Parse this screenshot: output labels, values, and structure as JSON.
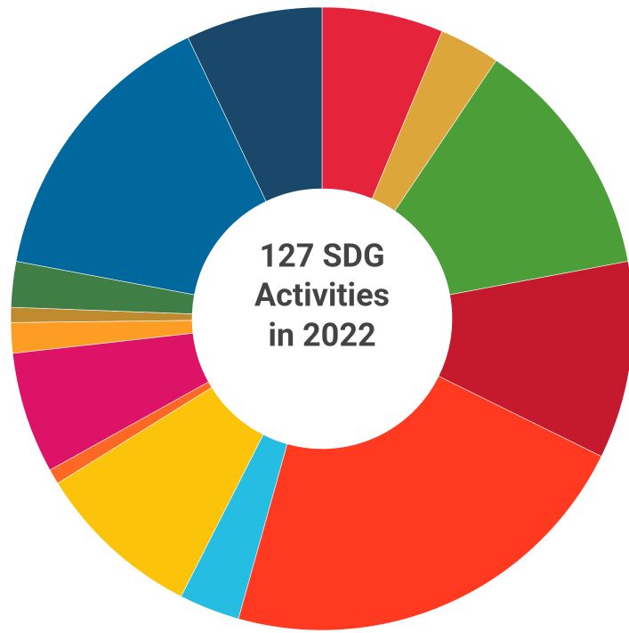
{
  "chart_data": {
    "type": "donut",
    "center_label_lines": [
      "127 SDG",
      "Activities",
      "in 2022"
    ],
    "values": [
      8,
      4,
      16,
      13,
      28,
      4,
      11,
      1,
      8,
      2,
      1,
      3,
      19,
      9
    ],
    "colors": [
      "#E5243B",
      "#DDA63A",
      "#4C9F38",
      "#C5192D",
      "#FF3A21",
      "#26BDE2",
      "#FCC30B",
      "#FD6925",
      "#DD1367",
      "#FD9D24",
      "#BF8B2E",
      "#3F7E44",
      "#00689D",
      "#19486A"
    ]
  }
}
